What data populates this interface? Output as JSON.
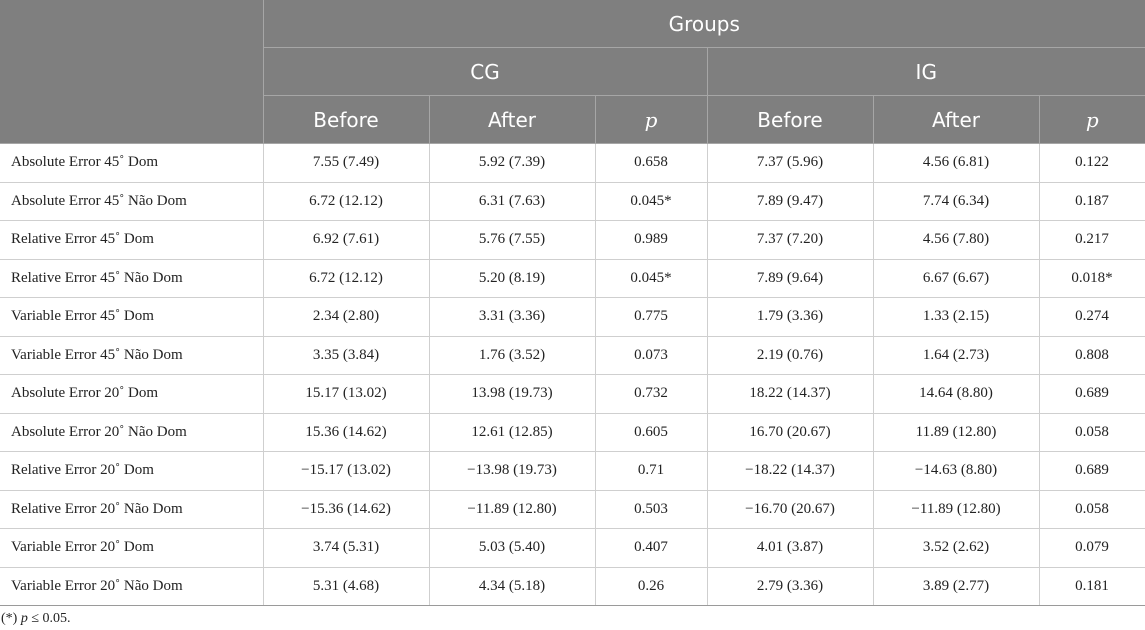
{
  "table": {
    "header": {
      "groups": "Groups",
      "cg": "CG",
      "ig": "IG",
      "before": "Before",
      "after": "After",
      "p": "p"
    },
    "rows": [
      {
        "label": "Absolute Error 45˚ Dom",
        "cg_before": "7.55 (7.49)",
        "cg_after": "5.92 (7.39)",
        "cg_p": "0.658",
        "ig_before": "7.37 (5.96)",
        "ig_after": "4.56 (6.81)",
        "ig_p": "0.122"
      },
      {
        "label": "Absolute Error 45˚ Não Dom",
        "cg_before": "6.72 (12.12)",
        "cg_after": "6.31 (7.63)",
        "cg_p": "0.045*",
        "ig_before": "7.89 (9.47)",
        "ig_after": "7.74 (6.34)",
        "ig_p": "0.187"
      },
      {
        "label": "Relative Error 45˚ Dom",
        "cg_before": "6.92 (7.61)",
        "cg_after": "5.76 (7.55)",
        "cg_p": "0.989",
        "ig_before": "7.37 (7.20)",
        "ig_after": "4.56 (7.80)",
        "ig_p": "0.217"
      },
      {
        "label": "Relative Error 45˚ Não Dom",
        "cg_before": "6.72 (12.12)",
        "cg_after": "5.20 (8.19)",
        "cg_p": "0.045*",
        "ig_before": "7.89 (9.64)",
        "ig_after": "6.67 (6.67)",
        "ig_p": "0.018*"
      },
      {
        "label": "Variable Error 45˚ Dom",
        "cg_before": "2.34 (2.80)",
        "cg_after": "3.31 (3.36)",
        "cg_p": "0.775",
        "ig_before": "1.79 (3.36)",
        "ig_after": "1.33 (2.15)",
        "ig_p": "0.274"
      },
      {
        "label": "Variable Error 45˚ Não Dom",
        "cg_before": "3.35 (3.84)",
        "cg_after": "1.76 (3.52)",
        "cg_p": "0.073",
        "ig_before": "2.19 (0.76)",
        "ig_after": "1.64 (2.73)",
        "ig_p": "0.808"
      },
      {
        "label": "Absolute Error 20˚ Dom",
        "cg_before": "15.17 (13.02)",
        "cg_after": "13.98 (19.73)",
        "cg_p": "0.732",
        "ig_before": "18.22 (14.37)",
        "ig_after": "14.64 (8.80)",
        "ig_p": "0.689"
      },
      {
        "label": "Absolute Error 20˚ Não Dom",
        "cg_before": "15.36 (14.62)",
        "cg_after": "12.61 (12.85)",
        "cg_p": "0.605",
        "ig_before": "16.70 (20.67)",
        "ig_after": "11.89 (12.80)",
        "ig_p": "0.058"
      },
      {
        "label": "Relative Error 20˚ Dom",
        "cg_before": "−15.17 (13.02)",
        "cg_after": "−13.98 (19.73)",
        "cg_p": "0.71",
        "ig_before": "−18.22 (14.37)",
        "ig_after": "−14.63 (8.80)",
        "ig_p": "0.689"
      },
      {
        "label": "Relative Error 20˚ Não Dom",
        "cg_before": "−15.36 (14.62)",
        "cg_after": "−11.89 (12.80)",
        "cg_p": "0.503",
        "ig_before": "−16.70 (20.67)",
        "ig_after": "−11.89 (12.80)",
        "ig_p": "0.058"
      },
      {
        "label": "Variable Error 20˚ Dom",
        "cg_before": "3.74 (5.31)",
        "cg_after": "5.03 (5.40)",
        "cg_p": "0.407",
        "ig_before": "4.01 (3.87)",
        "ig_after": "3.52 (2.62)",
        "ig_p": "0.079"
      },
      {
        "label": "Variable Error 20˚ Não Dom",
        "cg_before": "5.31 (4.68)",
        "cg_after": "4.34 (5.18)",
        "cg_p": "0.26",
        "ig_before": "2.79 (3.36)",
        "ig_after": "3.89 (2.77)",
        "ig_p": "0.181"
      }
    ]
  },
  "footnote": {
    "marker": "(*)",
    "p_symbol": "p",
    "text": "≤ 0.05."
  }
}
